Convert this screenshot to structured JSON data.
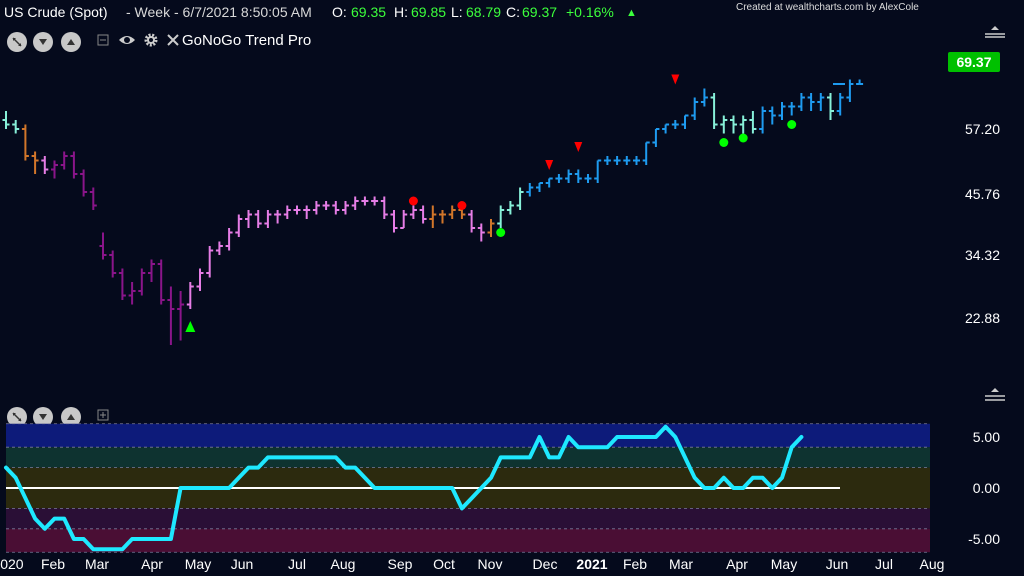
{
  "header": {
    "symbol": "US Crude (Spot)",
    "period": "- Week - 6/7/2021 8:50:05 AM",
    "open_label": "O:",
    "open": "69.35",
    "high_label": "H:",
    "high": "69.85",
    "low_label": "L:",
    "low": "68.79",
    "close_label": "C:",
    "close": "69.37",
    "change": "+0.16%",
    "credit": "Created at wealthcharts.com by AlexCole"
  },
  "indicator": {
    "name": "GoNoGo Trend Pro"
  },
  "colors": {
    "background": "#050a1c",
    "strong_go": "#1e9bf0",
    "weak_go": "#87f0d9",
    "neutral": "#d2762a",
    "weak_nogo": "#e67de6",
    "strong_nogo": "#8a158a",
    "osc_line": "#1ee8ff",
    "positive": "#00ff00",
    "negative": "#ff0000"
  },
  "chart_data": [
    {
      "type": "ohlc",
      "title": "US Crude (Spot)",
      "y_ticks": [
        "57.20",
        "45.76",
        "34.32",
        "22.88"
      ],
      "last_price": "69.37",
      "x_ticks": [
        "2020",
        "Feb",
        "Mar",
        "Apr",
        "May",
        "Jun",
        "Jul",
        "Aug",
        "Sep",
        "Oct",
        "Nov",
        "Dec",
        "2021",
        "Feb",
        "Mar",
        "Apr",
        "May",
        "Jun",
        "Jul",
        "Aug"
      ],
      "bars": [
        [
          61,
          63,
          59,
          60,
          "weak_go"
        ],
        [
          60,
          61,
          58,
          59,
          "weak_go"
        ],
        [
          59,
          60,
          52,
          53,
          "neutral"
        ],
        [
          53,
          54,
          49,
          52,
          "neutral"
        ],
        [
          52,
          53,
          49,
          50,
          "weak_nogo"
        ],
        [
          50,
          52,
          48,
          51,
          "strong_nogo"
        ],
        [
          51,
          54,
          50,
          53,
          "strong_nogo"
        ],
        [
          53,
          54,
          48,
          49,
          "strong_nogo"
        ],
        [
          49,
          50,
          44,
          45,
          "strong_nogo"
        ],
        [
          45,
          46,
          41,
          42,
          "strong_nogo"
        ],
        [
          33,
          36,
          30,
          31,
          "strong_nogo"
        ],
        [
          31,
          32,
          26,
          27,
          "strong_nogo"
        ],
        [
          27,
          28,
          21,
          22,
          "strong_nogo"
        ],
        [
          22,
          25,
          20,
          23,
          "strong_nogo"
        ],
        [
          23,
          28,
          22,
          27,
          "strong_nogo"
        ],
        [
          27,
          30,
          25,
          29,
          "strong_nogo"
        ],
        [
          29,
          30,
          20,
          21,
          "strong_nogo"
        ],
        [
          21,
          24,
          11,
          19,
          "strong_nogo"
        ],
        [
          19,
          23,
          12,
          20,
          "strong_nogo"
        ],
        [
          20,
          25,
          19,
          24,
          "weak_nogo"
        ],
        [
          24,
          28,
          23,
          27,
          "weak_nogo"
        ],
        [
          27,
          33,
          26,
          32,
          "weak_nogo"
        ],
        [
          32,
          34,
          31,
          33,
          "weak_nogo"
        ],
        [
          33,
          37,
          32,
          36,
          "weak_nogo"
        ],
        [
          36,
          40,
          35,
          39,
          "weak_nogo"
        ],
        [
          39,
          41,
          37,
          40,
          "weak_nogo"
        ],
        [
          40,
          41,
          37,
          38,
          "weak_nogo"
        ],
        [
          38,
          41,
          37,
          40,
          "weak_nogo"
        ],
        [
          40,
          41,
          38,
          40,
          "weak_nogo"
        ],
        [
          40,
          42,
          39,
          41,
          "weak_nogo"
        ],
        [
          41,
          42,
          40,
          41,
          "weak_nogo"
        ],
        [
          41,
          42,
          39,
          41,
          "weak_nogo"
        ],
        [
          41,
          43,
          40,
          42,
          "weak_nogo"
        ],
        [
          42,
          43,
          41,
          42,
          "weak_nogo"
        ],
        [
          42,
          43,
          40,
          41,
          "weak_nogo"
        ],
        [
          41,
          43,
          40,
          42,
          "weak_nogo"
        ],
        [
          42,
          44,
          41,
          43,
          "weak_nogo"
        ],
        [
          43,
          44,
          42,
          43,
          "weak_nogo"
        ],
        [
          43,
          44,
          42,
          43,
          "weak_nogo"
        ],
        [
          43,
          44,
          39,
          40,
          "weak_nogo"
        ],
        [
          40,
          41,
          36,
          37,
          "weak_nogo"
        ],
        [
          37,
          41,
          37,
          40,
          "weak_nogo"
        ],
        [
          40,
          42,
          39,
          41,
          "weak_nogo"
        ],
        [
          41,
          42,
          38,
          39,
          "weak_nogo"
        ],
        [
          39,
          42,
          37,
          40,
          "neutral"
        ],
        [
          40,
          41,
          38,
          40,
          "neutral"
        ],
        [
          40,
          42,
          39,
          41,
          "neutral"
        ],
        [
          41,
          42,
          39,
          40,
          "neutral"
        ],
        [
          40,
          41,
          36,
          37,
          "weak_nogo"
        ],
        [
          37,
          38,
          34,
          36,
          "weak_nogo"
        ],
        [
          36,
          39,
          35,
          38,
          "neutral"
        ],
        [
          38,
          42,
          37,
          41,
          "weak_go"
        ],
        [
          41,
          43,
          40,
          42,
          "weak_go"
        ],
        [
          42,
          46,
          41,
          45,
          "weak_go"
        ],
        [
          45,
          47,
          44,
          46,
          "strong_go"
        ],
        [
          46,
          47,
          45,
          47,
          "strong_go"
        ],
        [
          47,
          48,
          46,
          48,
          "strong_go"
        ],
        [
          48,
          49,
          47,
          48,
          "strong_go"
        ],
        [
          48,
          50,
          47,
          49,
          "strong_go"
        ],
        [
          49,
          50,
          47,
          48,
          "strong_go"
        ],
        [
          48,
          49,
          47,
          48,
          "strong_go"
        ],
        [
          48,
          52,
          47,
          52,
          "strong_go"
        ],
        [
          52,
          53,
          51,
          52,
          "strong_go"
        ],
        [
          52,
          53,
          51,
          52,
          "strong_go"
        ],
        [
          52,
          53,
          51,
          52,
          "strong_go"
        ],
        [
          52,
          53,
          51,
          52,
          "strong_go"
        ],
        [
          52,
          56,
          51,
          56,
          "strong_go"
        ],
        [
          56,
          59,
          55,
          59,
          "strong_go"
        ],
        [
          59,
          60,
          58,
          60,
          "strong_go"
        ],
        [
          60,
          61,
          59,
          60,
          "strong_go"
        ],
        [
          60,
          62,
          59,
          62,
          "strong_go"
        ],
        [
          62,
          66,
          61,
          65,
          "strong_go"
        ],
        [
          65,
          68,
          64,
          66,
          "strong_go"
        ],
        [
          66,
          67,
          59,
          60,
          "weak_go"
        ],
        [
          60,
          62,
          58,
          61,
          "weak_go"
        ],
        [
          61,
          62,
          58,
          60,
          "weak_go"
        ],
        [
          60,
          62,
          58,
          61,
          "weak_go"
        ],
        [
          61,
          63,
          58,
          59,
          "weak_go"
        ],
        [
          59,
          64,
          58,
          63,
          "strong_go"
        ],
        [
          63,
          64,
          60,
          62,
          "strong_go"
        ],
        [
          62,
          65,
          61,
          64,
          "strong_go"
        ],
        [
          64,
          65,
          62,
          64,
          "strong_go"
        ],
        [
          64,
          67,
          63,
          66,
          "strong_go"
        ],
        [
          66,
          67,
          63,
          65,
          "strong_go"
        ],
        [
          65,
          67,
          63,
          66,
          "strong_go"
        ],
        [
          66,
          67,
          61,
          63,
          "weak_go"
        ],
        [
          63,
          67,
          62,
          66,
          "strong_go"
        ],
        [
          66,
          70,
          65,
          69,
          "strong_go"
        ],
        [
          69,
          70,
          69,
          69,
          "strong_go"
        ]
      ],
      "signals": [
        {
          "bar": 19,
          "type": "up-triangle",
          "color": "#00ff00",
          "value": 15
        },
        {
          "bar": 42,
          "type": "circle",
          "color": "#ff0000",
          "value": 43
        },
        {
          "bar": 47,
          "type": "circle",
          "color": "#ff0000",
          "value": 42
        },
        {
          "bar": 51,
          "type": "circle",
          "color": "#00ff00",
          "value": 36
        },
        {
          "bar": 56,
          "type": "down-triangle",
          "color": "#ff0000",
          "value": 51
        },
        {
          "bar": 59,
          "type": "down-triangle",
          "color": "#ff0000",
          "value": 55
        },
        {
          "bar": 69,
          "type": "down-triangle",
          "color": "#ff0000",
          "value": 70
        },
        {
          "bar": 74,
          "type": "circle",
          "color": "#00ff00",
          "value": 56
        },
        {
          "bar": 76,
          "type": "circle",
          "color": "#00ff00",
          "value": 57
        },
        {
          "bar": 81,
          "type": "circle",
          "color": "#00ff00",
          "value": 60
        }
      ]
    },
    {
      "type": "line",
      "title": "GoNoGo Oscillator",
      "y_ticks": [
        "5.00",
        "0.00",
        "-5.00"
      ],
      "values": [
        2,
        1,
        -1,
        -3,
        -4,
        -3,
        -3,
        -5,
        -5,
        -6,
        -6,
        -6,
        -6,
        -5,
        -5,
        -5,
        -5,
        -5,
        0,
        0,
        0,
        0,
        0,
        0,
        1,
        2,
        2,
        3,
        3,
        3,
        3,
        3,
        3,
        3,
        3,
        2,
        2,
        1,
        0,
        0,
        0,
        0,
        0,
        0,
        0,
        0,
        0,
        -2,
        -1,
        0,
        1,
        3,
        3,
        3,
        3,
        5,
        3,
        3,
        5,
        4,
        4,
        4,
        4,
        5,
        5,
        5,
        5,
        5,
        6,
        5,
        3,
        1,
        0,
        0,
        1,
        0,
        0,
        1,
        1,
        0,
        1,
        4,
        5
      ]
    }
  ]
}
